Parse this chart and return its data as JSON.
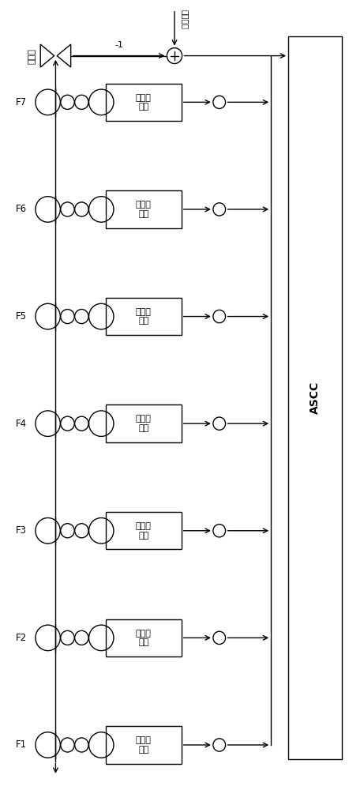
{
  "bg_color": "#ffffff",
  "fig_width": 4.42,
  "fig_height": 10.0,
  "stands": [
    "F7",
    "F6",
    "F5",
    "F4",
    "F3",
    "F2",
    "F1"
  ],
  "stand_label": "弯辊力\n水平",
  "top_label_vertical": "板型仪",
  "top_ref_label": "凸度参考",
  "ascc_label": "ASCC",
  "minus_label": "-1"
}
